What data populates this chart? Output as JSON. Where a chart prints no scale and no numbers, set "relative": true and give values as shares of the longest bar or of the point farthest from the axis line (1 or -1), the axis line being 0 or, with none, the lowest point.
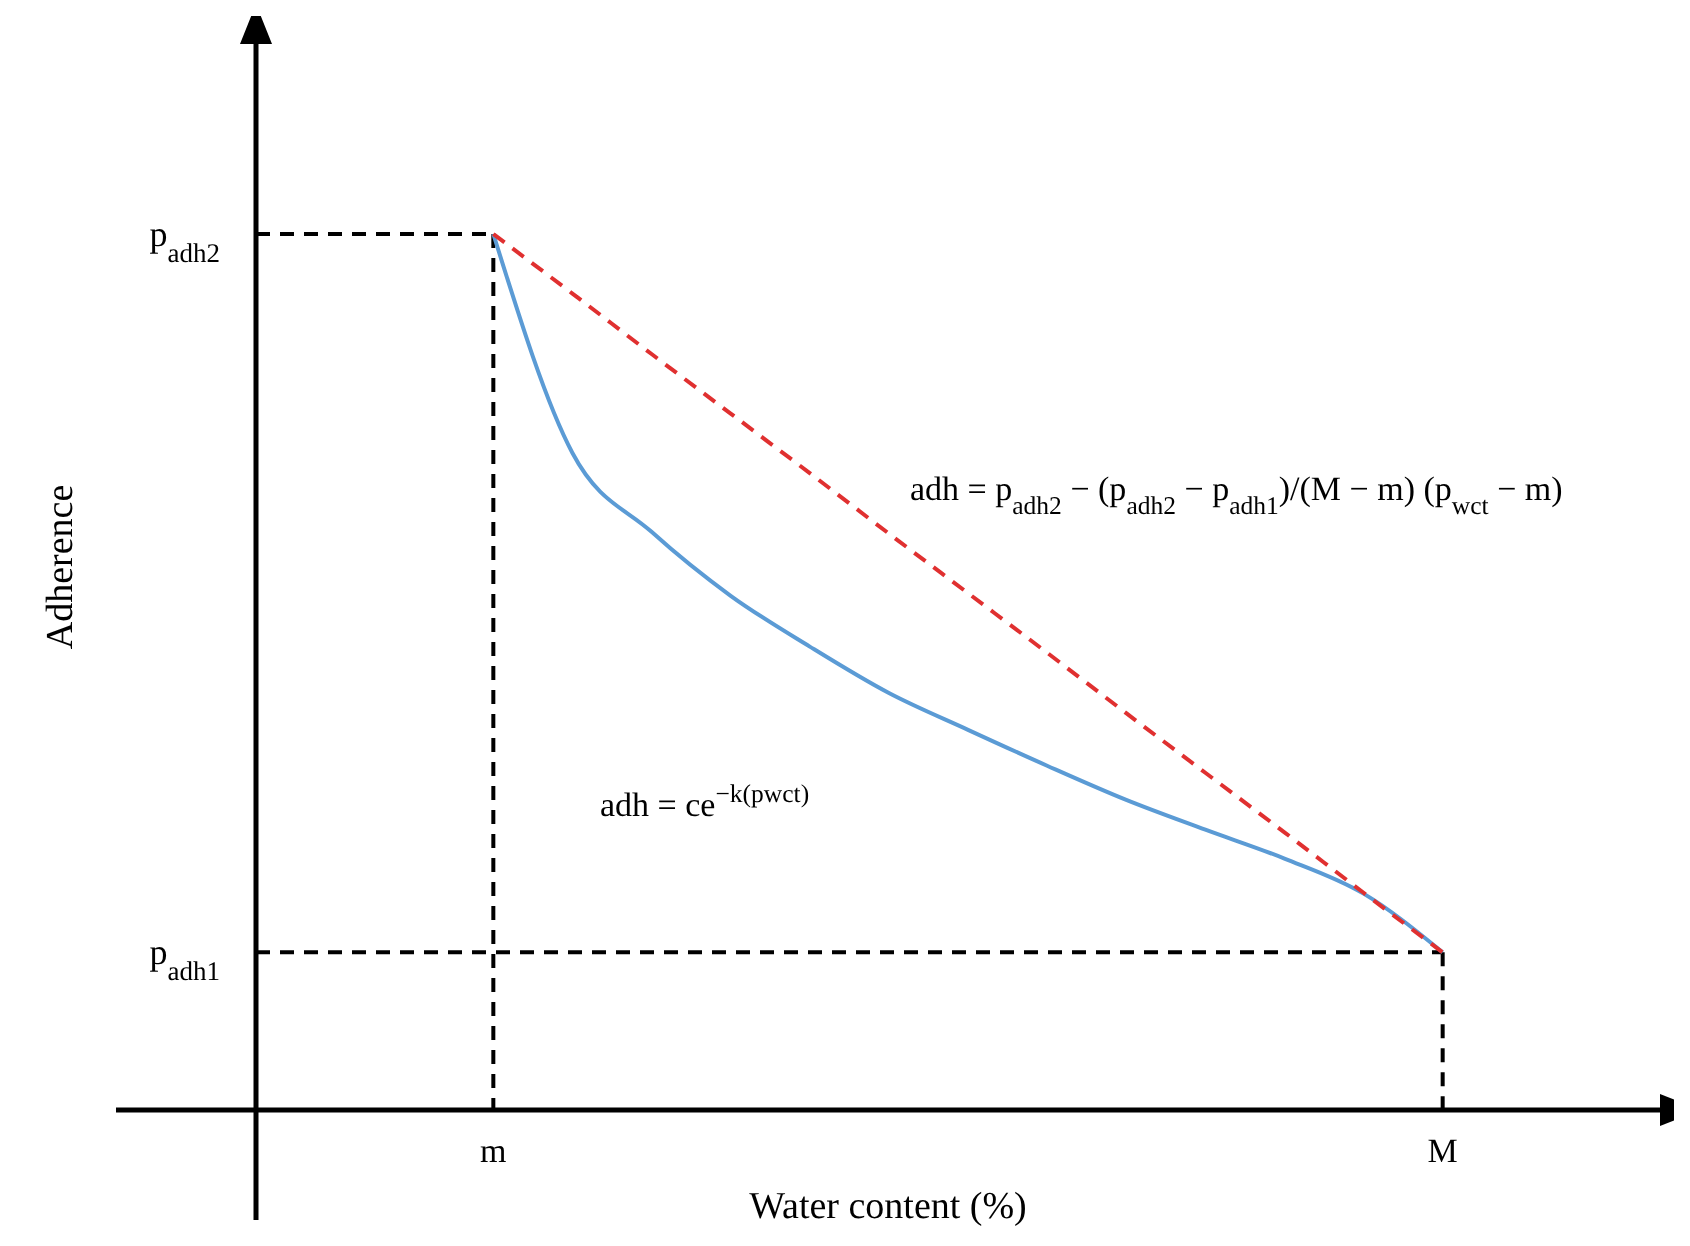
{
  "chart_data": {
    "type": "line",
    "xlabel": "Water content (%)",
    "ylabel": "Adherence",
    "relative": true,
    "categories": [
      null,
      null,
      null,
      "m",
      null,
      null,
      null,
      null,
      null,
      null,
      null,
      null,
      null,
      null,
      null,
      "M",
      null,
      null
    ],
    "grid": false,
    "series": [
      {
        "color": "#5b9bd5",
        "line_style": "solid",
        "values": [
          null,
          null,
          null,
          1,
          0.75,
          0.66,
          0.587,
          0.529,
          0.476,
          0.434,
          0.393,
          0.354,
          0.32,
          0.287,
          0.247,
          0.18,
          null,
          null
        ]
      },
      {
        "color": "#e03030",
        "line_style": "dashed",
        "values": [
          null,
          null,
          null,
          1,
          0.932,
          0.863,
          0.795,
          0.727,
          0.658,
          0.59,
          0.522,
          0.453,
          0.385,
          0.317,
          0.248,
          0.18,
          null,
          null
        ]
      }
    ],
    "ref_lines": [
      {
        "axis": "y",
        "value": 1,
        "label": "p$_{adh2}$",
        "color": "#000000",
        "line_style": "dashed"
      },
      {
        "axis": "y",
        "value": 0.18,
        "label": "p$_{adh1}$",
        "color": "#000000",
        "line_style": "dashed"
      },
      {
        "axis": "x",
        "value": "m",
        "color": "#000000",
        "line_style": "dashed"
      },
      {
        "axis": "x",
        "value": "M",
        "color": "#000000",
        "line_style": "dashed"
      }
    ],
    "annotations": [
      "adh = p$_{adh2}$ − (p$_{adh2}$ − p$_{adh1}$)/(M − m) (p$_{wct}$ − m)",
      "adh = ce$^{−k(pwct)}$"
    ]
  }
}
